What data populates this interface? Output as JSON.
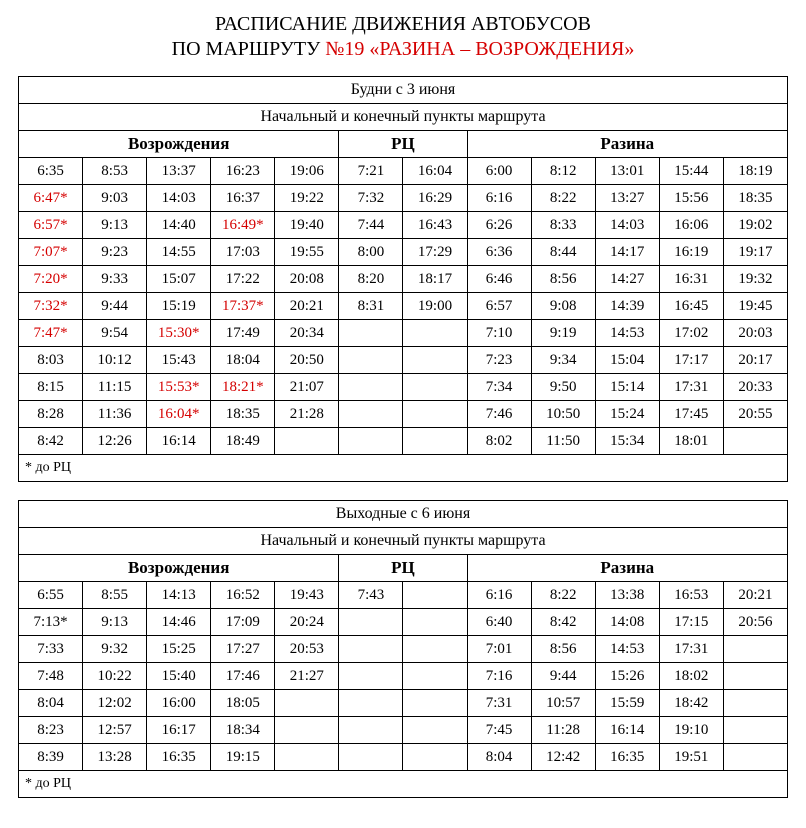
{
  "colors": {
    "accent": "#d50000",
    "text": "#000000",
    "bg": "#ffffff",
    "border": "#000000"
  },
  "title_line1": "РАСПИСАНИЕ ДВИЖЕНИЯ АВТОБУСОВ",
  "title_line2_prefix": "ПО МАРШРУТУ ",
  "title_line2_route": "№19 «РАЗИНА – ВОЗРОЖДЕНИЯ»",
  "subheader_route_points": "Начальный и конечный пункты маршрута",
  "col_vozrozhdenia": "Возрождения",
  "col_rc": "РЦ",
  "col_razina": "Разина",
  "footnote": "* до РЦ",
  "weekday": {
    "caption": "Будни с 3 июня",
    "rows": [
      [
        {
          "t": "6:35"
        },
        {
          "t": "8:53"
        },
        {
          "t": "13:37"
        },
        {
          "t": "16:23"
        },
        {
          "t": "19:06"
        },
        {
          "t": "7:21"
        },
        {
          "t": "16:04"
        },
        {
          "t": "6:00"
        },
        {
          "t": "8:12"
        },
        {
          "t": "13:01"
        },
        {
          "t": "15:44"
        },
        {
          "t": "18:19"
        }
      ],
      [
        {
          "t": "6:47*",
          "r": 1
        },
        {
          "t": "9:03"
        },
        {
          "t": "14:03"
        },
        {
          "t": "16:37"
        },
        {
          "t": "19:22"
        },
        {
          "t": "7:32"
        },
        {
          "t": "16:29"
        },
        {
          "t": "6:16"
        },
        {
          "t": "8:22"
        },
        {
          "t": "13:27"
        },
        {
          "t": "15:56"
        },
        {
          "t": "18:35"
        }
      ],
      [
        {
          "t": "6:57*",
          "r": 1
        },
        {
          "t": "9:13"
        },
        {
          "t": "14:40"
        },
        {
          "t": "16:49*",
          "r": 1
        },
        {
          "t": "19:40"
        },
        {
          "t": "7:44"
        },
        {
          "t": "16:43"
        },
        {
          "t": "6:26"
        },
        {
          "t": "8:33"
        },
        {
          "t": "14:03"
        },
        {
          "t": "16:06"
        },
        {
          "t": "19:02"
        }
      ],
      [
        {
          "t": "7:07*",
          "r": 1
        },
        {
          "t": "9:23"
        },
        {
          "t": "14:55"
        },
        {
          "t": "17:03"
        },
        {
          "t": "19:55"
        },
        {
          "t": "8:00"
        },
        {
          "t": "17:29"
        },
        {
          "t": "6:36"
        },
        {
          "t": "8:44"
        },
        {
          "t": "14:17"
        },
        {
          "t": "16:19"
        },
        {
          "t": "19:17"
        }
      ],
      [
        {
          "t": "7:20*",
          "r": 1
        },
        {
          "t": "9:33"
        },
        {
          "t": "15:07"
        },
        {
          "t": "17:22"
        },
        {
          "t": "20:08"
        },
        {
          "t": "8:20"
        },
        {
          "t": "18:17"
        },
        {
          "t": "6:46"
        },
        {
          "t": "8:56"
        },
        {
          "t": "14:27"
        },
        {
          "t": "16:31"
        },
        {
          "t": "19:32"
        }
      ],
      [
        {
          "t": "7:32*",
          "r": 1
        },
        {
          "t": "9:44"
        },
        {
          "t": "15:19"
        },
        {
          "t": "17:37*",
          "r": 1
        },
        {
          "t": "20:21"
        },
        {
          "t": "8:31"
        },
        {
          "t": "19:00"
        },
        {
          "t": "6:57"
        },
        {
          "t": "9:08"
        },
        {
          "t": "14:39"
        },
        {
          "t": "16:45"
        },
        {
          "t": "19:45"
        }
      ],
      [
        {
          "t": "7:47*",
          "r": 1
        },
        {
          "t": "9:54"
        },
        {
          "t": "15:30*",
          "r": 1
        },
        {
          "t": "17:49"
        },
        {
          "t": "20:34"
        },
        {
          "t": ""
        },
        {
          "t": ""
        },
        {
          "t": "7:10"
        },
        {
          "t": "9:19"
        },
        {
          "t": "14:53"
        },
        {
          "t": "17:02"
        },
        {
          "t": "20:03"
        }
      ],
      [
        {
          "t": "8:03"
        },
        {
          "t": "10:12"
        },
        {
          "t": "15:43"
        },
        {
          "t": "18:04"
        },
        {
          "t": "20:50"
        },
        {
          "t": ""
        },
        {
          "t": ""
        },
        {
          "t": "7:23"
        },
        {
          "t": "9:34"
        },
        {
          "t": "15:04"
        },
        {
          "t": "17:17"
        },
        {
          "t": "20:17"
        }
      ],
      [
        {
          "t": "8:15"
        },
        {
          "t": "11:15"
        },
        {
          "t": "15:53*",
          "r": 1
        },
        {
          "t": "18:21*",
          "r": 1
        },
        {
          "t": "21:07"
        },
        {
          "t": ""
        },
        {
          "t": ""
        },
        {
          "t": "7:34"
        },
        {
          "t": "9:50"
        },
        {
          "t": "15:14"
        },
        {
          "t": "17:31"
        },
        {
          "t": "20:33"
        }
      ],
      [
        {
          "t": "8:28"
        },
        {
          "t": "11:36"
        },
        {
          "t": "16:04*",
          "r": 1
        },
        {
          "t": "18:35"
        },
        {
          "t": "21:28"
        },
        {
          "t": ""
        },
        {
          "t": ""
        },
        {
          "t": "7:46"
        },
        {
          "t": "10:50"
        },
        {
          "t": "15:24"
        },
        {
          "t": "17:45"
        },
        {
          "t": "20:55"
        }
      ],
      [
        {
          "t": "8:42"
        },
        {
          "t": "12:26"
        },
        {
          "t": "16:14"
        },
        {
          "t": "18:49"
        },
        {
          "t": ""
        },
        {
          "t": ""
        },
        {
          "t": ""
        },
        {
          "t": "8:02"
        },
        {
          "t": "11:50"
        },
        {
          "t": "15:34"
        },
        {
          "t": "18:01"
        },
        {
          "t": ""
        }
      ]
    ]
  },
  "weekend": {
    "caption": "Выходные с 6 июня",
    "rows": [
      [
        {
          "t": "6:55"
        },
        {
          "t": "8:55"
        },
        {
          "t": "14:13"
        },
        {
          "t": "16:52"
        },
        {
          "t": "19:43"
        },
        {
          "t": "7:43"
        },
        {
          "t": ""
        },
        {
          "t": "6:16"
        },
        {
          "t": "8:22"
        },
        {
          "t": "13:38"
        },
        {
          "t": "16:53"
        },
        {
          "t": "20:21"
        }
      ],
      [
        {
          "t": "7:13*"
        },
        {
          "t": "9:13"
        },
        {
          "t": "14:46"
        },
        {
          "t": "17:09"
        },
        {
          "t": "20:24"
        },
        {
          "t": ""
        },
        {
          "t": ""
        },
        {
          "t": "6:40"
        },
        {
          "t": "8:42"
        },
        {
          "t": "14:08"
        },
        {
          "t": "17:15"
        },
        {
          "t": "20:56"
        }
      ],
      [
        {
          "t": "7:33"
        },
        {
          "t": "9:32"
        },
        {
          "t": "15:25"
        },
        {
          "t": "17:27"
        },
        {
          "t": "20:53"
        },
        {
          "t": ""
        },
        {
          "t": ""
        },
        {
          "t": "7:01"
        },
        {
          "t": "8:56"
        },
        {
          "t": "14:53"
        },
        {
          "t": "17:31"
        },
        {
          "t": ""
        }
      ],
      [
        {
          "t": "7:48"
        },
        {
          "t": "10:22"
        },
        {
          "t": "15:40"
        },
        {
          "t": "17:46"
        },
        {
          "t": "21:27"
        },
        {
          "t": ""
        },
        {
          "t": ""
        },
        {
          "t": "7:16"
        },
        {
          "t": "9:44"
        },
        {
          "t": "15:26"
        },
        {
          "t": "18:02"
        },
        {
          "t": ""
        }
      ],
      [
        {
          "t": "8:04"
        },
        {
          "t": "12:02"
        },
        {
          "t": "16:00"
        },
        {
          "t": "18:05"
        },
        {
          "t": ""
        },
        {
          "t": ""
        },
        {
          "t": ""
        },
        {
          "t": "7:31"
        },
        {
          "t": "10:57"
        },
        {
          "t": "15:59"
        },
        {
          "t": "18:42"
        },
        {
          "t": ""
        }
      ],
      [
        {
          "t": "8:23"
        },
        {
          "t": "12:57"
        },
        {
          "t": "16:17"
        },
        {
          "t": "18:34"
        },
        {
          "t": ""
        },
        {
          "t": ""
        },
        {
          "t": ""
        },
        {
          "t": "7:45"
        },
        {
          "t": "11:28"
        },
        {
          "t": "16:14"
        },
        {
          "t": "19:10"
        },
        {
          "t": ""
        }
      ],
      [
        {
          "t": "8:39"
        },
        {
          "t": "13:28"
        },
        {
          "t": "16:35"
        },
        {
          "t": "19:15"
        },
        {
          "t": ""
        },
        {
          "t": ""
        },
        {
          "t": ""
        },
        {
          "t": "8:04"
        },
        {
          "t": "12:42"
        },
        {
          "t": "16:35"
        },
        {
          "t": "19:51"
        },
        {
          "t": ""
        }
      ]
    ]
  }
}
